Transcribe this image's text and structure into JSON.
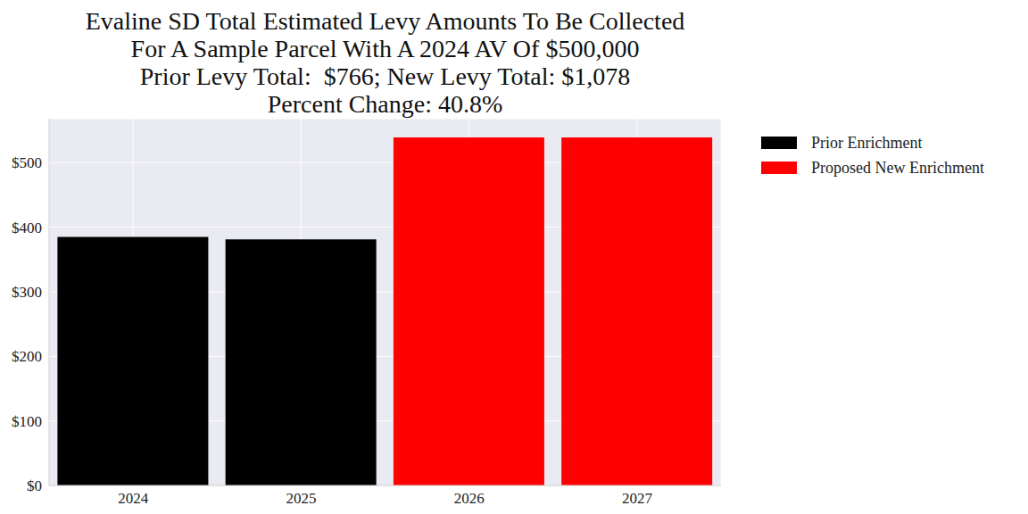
{
  "chart_data": {
    "type": "bar",
    "title": "Evaline SD Total Estimated Levy Amounts To Be Collected\nFor A Sample Parcel With A 2024 AV Of $500,000\nPrior Levy Total:  $766; New Levy Total: $1,078\nPercent Change: 40.8%",
    "categories": [
      "2024",
      "2025",
      "2026",
      "2027"
    ],
    "series": [
      {
        "name": "Prior Enrichment",
        "color": "#000000",
        "values": [
          385,
          381,
          null,
          null
        ]
      },
      {
        "name": "Proposed New Enrichment",
        "color": "#ff0000",
        "values": [
          null,
          null,
          539,
          539
        ]
      }
    ],
    "stacked": true,
    "ylim": [
      0,
      568
    ],
    "yticks": [
      {
        "value": 0,
        "label": "$0"
      },
      {
        "value": 100,
        "label": "$100"
      },
      {
        "value": 200,
        "label": "$200"
      },
      {
        "value": 300,
        "label": "$300"
      },
      {
        "value": 400,
        "label": "$400"
      },
      {
        "value": 500,
        "label": "$500"
      }
    ],
    "grid": true,
    "legend": "upper right"
  }
}
